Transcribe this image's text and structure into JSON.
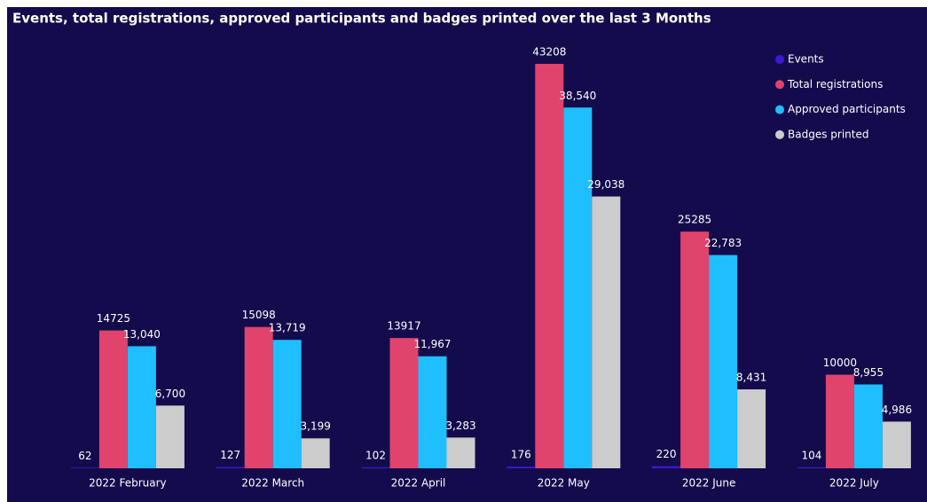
{
  "chart_data": {
    "type": "bar",
    "title": "Events, total registrations, approved participants and badges printed over the last 3 Months",
    "categories": [
      "2022 February",
      "2022 March",
      "2022 April",
      "2022 May",
      "2022 June",
      "2022 July"
    ],
    "legend": "top-right",
    "series": [
      {
        "name": "Events",
        "color": "#3f17d9",
        "values": [
          62,
          127,
          102,
          176,
          220,
          104
        ]
      },
      {
        "name": "Total registrations",
        "color": "#e0436c",
        "values": [
          14725,
          15098,
          13917,
          43208,
          25285,
          10000
        ]
      },
      {
        "name": "Approved participants",
        "color": "#1fbfff",
        "values": [
          13040,
          13719,
          11967,
          38540,
          22783,
          8955
        ],
        "value_labels": [
          "13,040",
          "13,719",
          "11,967",
          "38,540",
          "22,783",
          "8,955"
        ]
      },
      {
        "name": "Badges printed",
        "color": "#cccccc",
        "values": [
          6700,
          3199,
          3283,
          29038,
          8431,
          4986
        ],
        "value_labels": [
          "6,700",
          "3,199",
          "3,283",
          "29,038",
          "8,431",
          "4,986"
        ]
      }
    ]
  }
}
